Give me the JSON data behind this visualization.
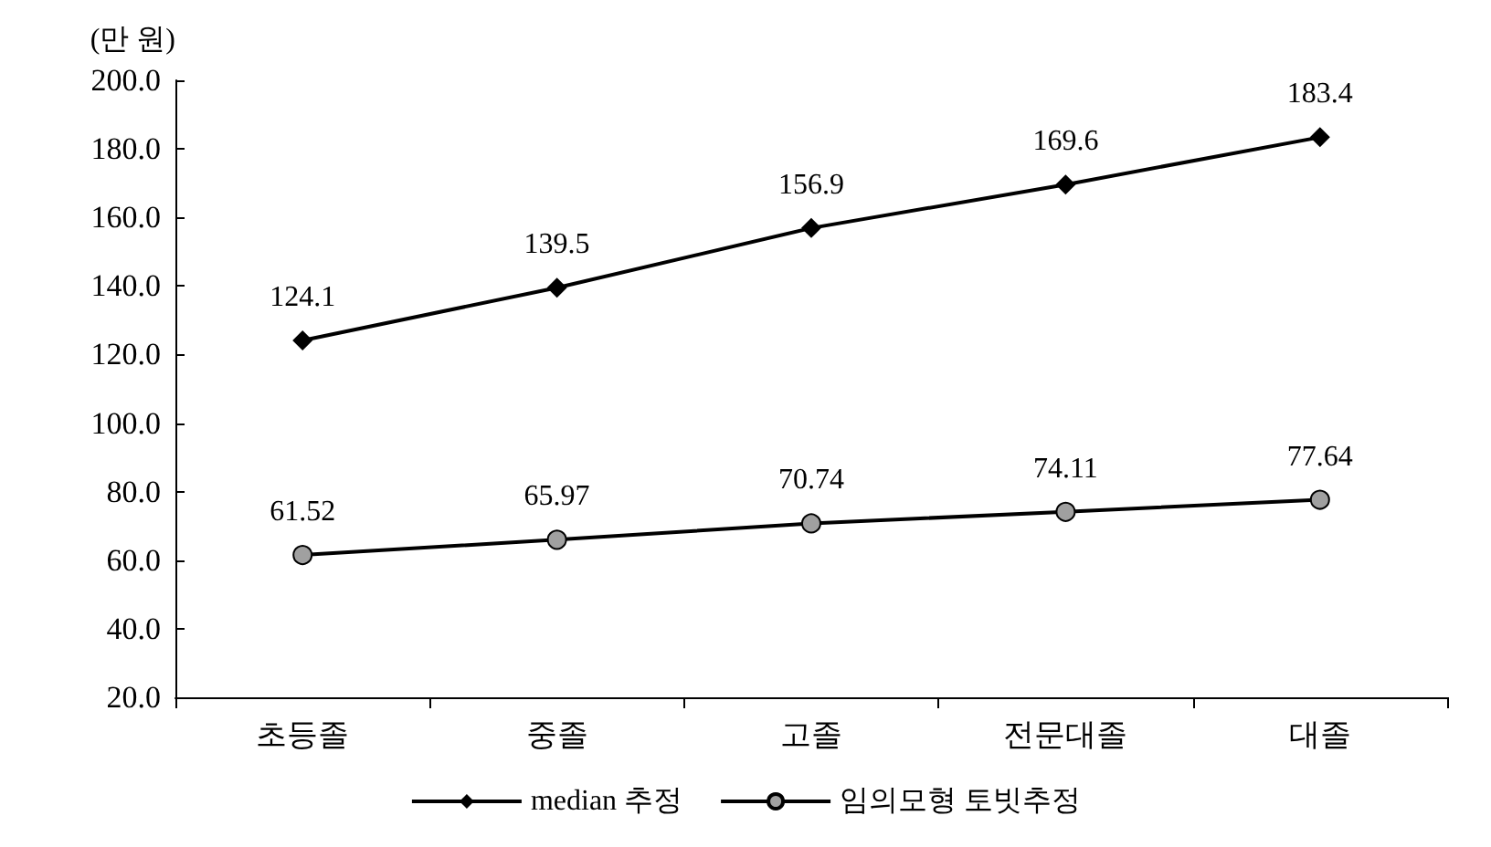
{
  "chart_data": {
    "type": "line",
    "ylabel": "(만 원)",
    "categories": [
      "초등졸",
      "중졸",
      "고졸",
      "전문대졸",
      "대졸"
    ],
    "series": [
      {
        "name": "median 추정",
        "color": "#000000",
        "marker": "diamond",
        "values": [
          124.1,
          139.5,
          156.9,
          169.6,
          183.4
        ]
      },
      {
        "name": "임의모형 토빗추정",
        "color": "#000000",
        "marker": "circle",
        "values": [
          61.52,
          65.97,
          70.74,
          74.11,
          77.64
        ]
      }
    ],
    "ylim": [
      20,
      200
    ],
    "yticks": [
      {
        "value": 20,
        "label": "20.0"
      },
      {
        "value": 40,
        "label": "40.0"
      },
      {
        "value": 60,
        "label": "60.0"
      },
      {
        "value": 80,
        "label": "80.0"
      },
      {
        "value": 100,
        "label": "100.0"
      },
      {
        "value": 120,
        "label": "120.0"
      },
      {
        "value": 140,
        "label": "140.0"
      },
      {
        "value": 160,
        "label": "160.0"
      },
      {
        "value": 180,
        "label": "180.0"
      },
      {
        "value": 200,
        "label": "200.0"
      }
    ],
    "grid": false,
    "legend": "bottom",
    "data_labels": true,
    "line_style": "solid"
  }
}
